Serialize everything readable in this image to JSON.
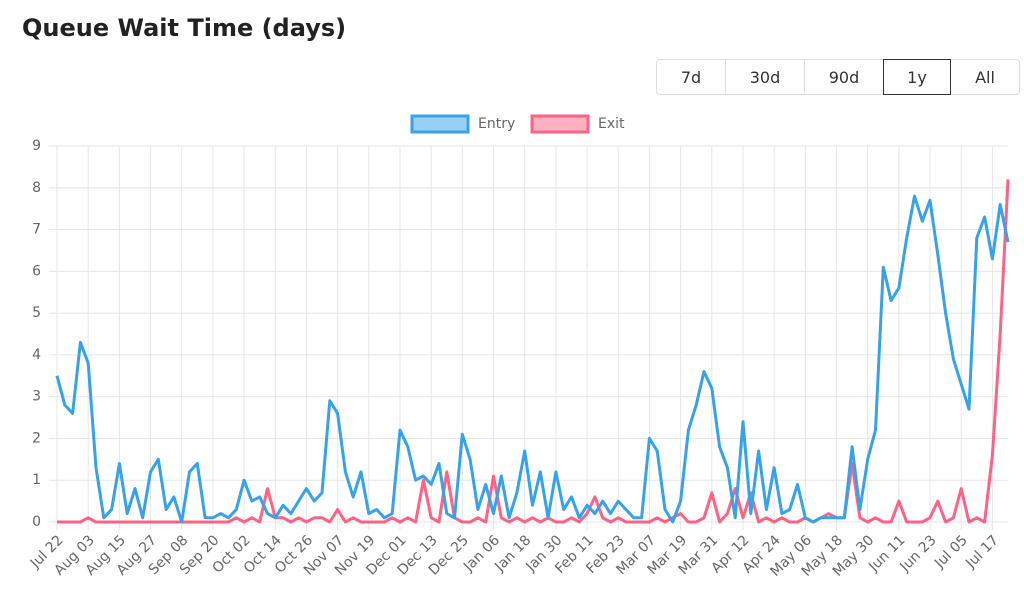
{
  "chart_data": {
    "type": "line",
    "title": "Queue Wait Time (days)",
    "ranges": [
      "7d",
      "30d",
      "90d",
      "1y",
      "All"
    ],
    "selected_range": 3,
    "categories": [
      "Jul 22",
      null,
      null,
      null,
      "Aug 03",
      null,
      null,
      null,
      "Aug 15",
      null,
      null,
      null,
      "Aug 27",
      null,
      null,
      null,
      "Sep 08",
      null,
      null,
      null,
      "Sep 20",
      null,
      null,
      null,
      "Oct 02",
      null,
      null,
      null,
      "Oct 14",
      null,
      null,
      null,
      "Oct 26",
      null,
      null,
      null,
      "Nov 07",
      null,
      null,
      null,
      "Nov 19",
      null,
      null,
      null,
      "Dec 01",
      null,
      null,
      null,
      "Dec 13",
      null,
      null,
      null,
      "Dec 25",
      null,
      null,
      null,
      "Jan 06",
      null,
      null,
      null,
      "Jan 18",
      null,
      null,
      null,
      "Jan 30",
      null,
      null,
      null,
      "Feb 11",
      null,
      null,
      null,
      "Feb 23",
      null,
      null,
      null,
      "Mar 07",
      null,
      null,
      null,
      "Mar 19",
      null,
      null,
      null,
      "Mar 31",
      null,
      null,
      null,
      "Apr 12",
      null,
      null,
      null,
      "Apr 24",
      null,
      null,
      null,
      "May 06",
      null,
      null,
      null,
      "May 18",
      null,
      null,
      null,
      "May 30",
      null,
      null,
      null,
      "Jun 11",
      null,
      null,
      null,
      "Jun 23",
      null,
      null,
      null,
      "Jul 05",
      null,
      null,
      null,
      "Jul 17",
      null,
      null
    ],
    "series": [
      {
        "name": "Entry",
        "color": "#36a2eb",
        "values": [
          3.5,
          2.8,
          2.6,
          4.3,
          3.8,
          1.3,
          0.1,
          0.3,
          1.4,
          0.2,
          0.8,
          0.1,
          1.2,
          1.5,
          0.3,
          0.6,
          0.0,
          1.2,
          1.4,
          0.1,
          0.1,
          0.2,
          0.1,
          0.3,
          1.0,
          0.5,
          0.6,
          0.2,
          0.1,
          0.4,
          0.2,
          0.5,
          0.8,
          0.5,
          0.7,
          2.9,
          2.6,
          1.2,
          0.6,
          1.2,
          0.2,
          0.3,
          0.1,
          0.2,
          2.2,
          1.8,
          1.0,
          1.1,
          0.9,
          1.4,
          0.2,
          0.1,
          2.1,
          1.5,
          0.3,
          0.9,
          0.2,
          1.1,
          0.1,
          0.7,
          1.7,
          0.4,
          1.2,
          0.1,
          1.2,
          0.3,
          0.6,
          0.1,
          0.4,
          0.2,
          0.5,
          0.2,
          0.5,
          0.3,
          0.1,
          0.1,
          2.0,
          1.7,
          0.3,
          0.0,
          0.5,
          2.2,
          2.8,
          3.6,
          3.2,
          1.8,
          1.3,
          0.1,
          2.4,
          0.2,
          1.7,
          0.3,
          1.3,
          0.2,
          0.3,
          0.9,
          0.1,
          0.0,
          0.1,
          0.1,
          0.1,
          0.1,
          1.8,
          0.3,
          1.5,
          2.2,
          6.1,
          5.3,
          5.6,
          6.8,
          7.8,
          7.2,
          7.7,
          6.4,
          5.0,
          3.9,
          3.3,
          2.7,
          6.8,
          7.3,
          6.3,
          7.6,
          6.7
        ]
      },
      {
        "name": "Exit",
        "color": "#ff6384",
        "values": [
          0.0,
          0.0,
          0.0,
          0.0,
          0.1,
          0.0,
          0.0,
          0.0,
          0.0,
          0.0,
          0.0,
          0.0,
          0.0,
          0.0,
          0.0,
          0.0,
          0.0,
          0.0,
          0.0,
          0.0,
          0.0,
          0.0,
          0.0,
          0.1,
          0.0,
          0.1,
          0.0,
          0.8,
          0.1,
          0.1,
          0.0,
          0.1,
          0.0,
          0.1,
          0.1,
          0.0,
          0.3,
          0.0,
          0.1,
          0.0,
          0.0,
          0.0,
          0.0,
          0.1,
          0.0,
          0.1,
          0.0,
          1.0,
          0.1,
          0.0,
          1.2,
          0.1,
          0.0,
          0.0,
          0.1,
          0.0,
          1.1,
          0.1,
          0.0,
          0.1,
          0.0,
          0.1,
          0.0,
          0.1,
          0.0,
          0.0,
          0.1,
          0.0,
          0.2,
          0.6,
          0.1,
          0.0,
          0.1,
          0.0,
          0.0,
          0.0,
          0.0,
          0.1,
          0.0,
          0.1,
          0.2,
          0.0,
          0.0,
          0.1,
          0.7,
          0.0,
          0.2,
          0.8,
          0.1,
          0.7,
          0.0,
          0.1,
          0.0,
          0.1,
          0.0,
          0.0,
          0.1,
          0.0,
          0.1,
          0.2,
          0.1,
          0.1,
          1.4,
          0.1,
          0.0,
          0.1,
          0.0,
          0.0,
          0.5,
          0.0,
          0.0,
          0.0,
          0.1,
          0.5,
          0.0,
          0.1,
          0.8,
          0.0,
          0.1,
          0.0,
          1.6,
          4.5,
          8.2
        ]
      }
    ],
    "ylim": [
      0,
      9
    ],
    "yticks": [
      0,
      1,
      2,
      3,
      4,
      5,
      6,
      7,
      8,
      9
    ],
    "grid": true
  }
}
